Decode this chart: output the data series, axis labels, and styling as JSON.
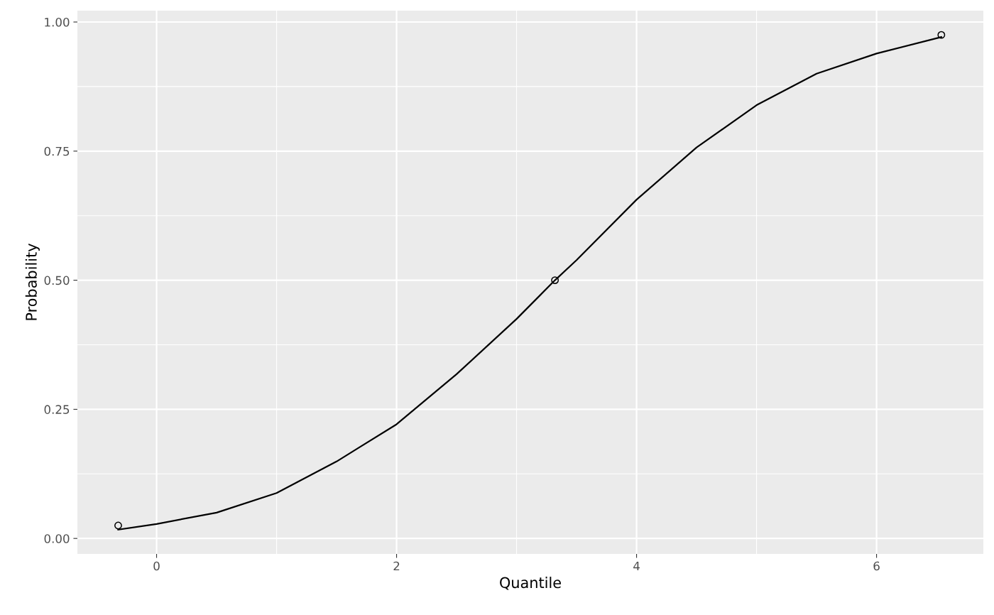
{
  "chart_data": {
    "type": "line",
    "xlabel": "Quantile",
    "ylabel": "Probability",
    "series": [
      {
        "color": "#000000",
        "marker": "none",
        "x": [
          -0.32,
          0,
          0.5,
          1,
          1.5,
          2,
          2.5,
          3,
          3.32,
          3.5,
          4,
          4.5,
          5,
          5.5,
          6,
          6.54
        ],
        "values": [
          0.017,
          0.028,
          0.05,
          0.088,
          0.149,
          0.221,
          0.318,
          0.425,
          0.5,
          0.539,
          0.656,
          0.757,
          0.839,
          0.9,
          0.939,
          0.971
        ]
      },
      {
        "type": "scatter",
        "color": "#000000",
        "marker": "circle",
        "x": [
          -0.32,
          3.32,
          6.54
        ],
        "values": [
          0.025,
          0.5,
          0.975
        ]
      }
    ],
    "xlim": [
      -0.66,
      6.89
    ],
    "ylim": [
      -0.03,
      1.022
    ],
    "xticks": [
      0,
      2,
      4,
      6
    ],
    "yticks": [
      {
        "value": 0,
        "label": "0.00"
      },
      {
        "value": 0.25,
        "label": "0.25"
      },
      {
        "value": 0.5,
        "label": "0.50"
      },
      {
        "value": 0.75,
        "label": "0.75"
      },
      {
        "value": 1,
        "label": "1.00"
      }
    ],
    "grid": true
  }
}
